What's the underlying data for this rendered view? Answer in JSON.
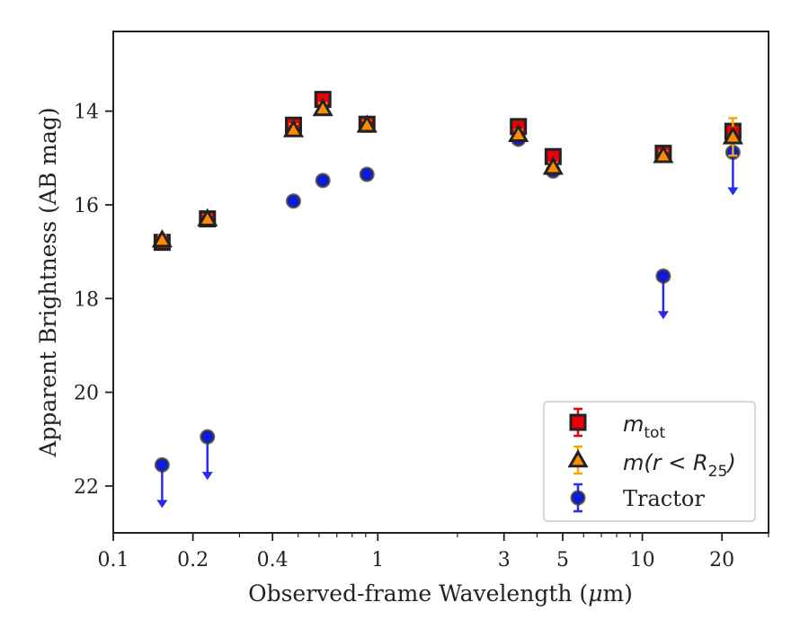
{
  "chart_data": {
    "type": "scatter",
    "xlabel_text": "Observed-frame Wavelength (",
    "xlabel_mu": "μ",
    "xlabel_tail": "m)",
    "ylabel": "Apparent Brightness (AB mag)",
    "xscale": "log",
    "xlim": [
      0.1,
      30
    ],
    "ylim": [
      23.0,
      12.3
    ],
    "y_inverted": true,
    "grid": false,
    "legend_position": "lower-right",
    "x_ticks": [
      0.1,
      0.2,
      0.4,
      1,
      3,
      5,
      10,
      20
    ],
    "x_tick_labels": [
      "0.1",
      "0.2",
      "0.4",
      "1",
      "3",
      "5",
      "10",
      "20"
    ],
    "y_ticks": [
      14,
      16,
      18,
      20,
      22
    ],
    "y_tick_labels": [
      "14",
      "16",
      "18",
      "20",
      "22"
    ],
    "series": [
      {
        "key": "mtot",
        "marker": "square",
        "color": "#e8000b",
        "edge_color": "#222222",
        "error_color": "#e8000b",
        "legend_main": "m",
        "legend_sub": "tot",
        "points": [
          {
            "x": 0.153,
            "y": 16.8,
            "err": 0.08
          },
          {
            "x": 0.227,
            "y": 16.3,
            "err": 0.08
          },
          {
            "x": 0.48,
            "y": 14.3,
            "err": 0.15
          },
          {
            "x": 0.62,
            "y": 13.75,
            "err": 0.12
          },
          {
            "x": 0.91,
            "y": 14.28,
            "err": 0.12
          },
          {
            "x": 3.4,
            "y": 14.33,
            "err": 0.1
          },
          {
            "x": 4.6,
            "y": 14.97,
            "err": 0.1
          },
          {
            "x": 12.0,
            "y": 14.9,
            "err": 0.1
          },
          {
            "x": 22.0,
            "y": 14.43,
            "err": 0.12
          }
        ]
      },
      {
        "key": "mr25",
        "marker": "triangle",
        "color": "#ff8c00",
        "edge_color": "#222222",
        "error_color": "#f5a800",
        "legend_main": "m",
        "legend_math_mid": "(r < R",
        "legend_sub": "25",
        "legend_math_end": ")",
        "points": [
          {
            "x": 0.153,
            "y": 16.75,
            "err": 0.1
          },
          {
            "x": 0.227,
            "y": 16.3,
            "err": 0.08
          },
          {
            "x": 0.48,
            "y": 14.4,
            "err": 0.12
          },
          {
            "x": 0.62,
            "y": 13.95,
            "err": 0.12
          },
          {
            "x": 0.91,
            "y": 14.3,
            "err": 0.1
          },
          {
            "x": 3.4,
            "y": 14.5,
            "err": 0.1
          },
          {
            "x": 4.6,
            "y": 15.2,
            "err": 0.1
          },
          {
            "x": 12.0,
            "y": 14.95,
            "err": 0.1
          },
          {
            "x": 22.0,
            "y": 14.55,
            "err": 0.4
          }
        ]
      },
      {
        "key": "tractor",
        "marker": "circle",
        "color": "#0d1ae6",
        "edge_color": "#333333",
        "error_color": "#2b2bf0",
        "legend_main": "Tractor",
        "points": [
          {
            "x": 0.153,
            "y": 21.55,
            "err": 0.05,
            "upper_limit": true
          },
          {
            "x": 0.227,
            "y": 20.95,
            "err": 0.05,
            "upper_limit": true
          },
          {
            "x": 0.48,
            "y": 15.92,
            "err": 0.05
          },
          {
            "x": 0.62,
            "y": 15.48,
            "err": 0.05
          },
          {
            "x": 0.91,
            "y": 15.35,
            "err": 0.05
          },
          {
            "x": 3.4,
            "y": 14.6,
            "err": 0.05
          },
          {
            "x": 4.6,
            "y": 15.28,
            "err": 0.05
          },
          {
            "x": 12.0,
            "y": 17.52,
            "err": 0.05,
            "upper_limit": true
          },
          {
            "x": 22.0,
            "y": 14.88,
            "err": 0.05,
            "upper_limit": true
          }
        ]
      }
    ]
  }
}
